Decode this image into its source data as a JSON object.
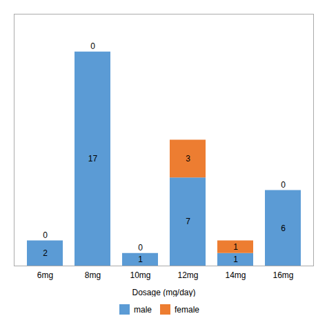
{
  "chart_data": {
    "type": "bar",
    "stacked": true,
    "xlabel": "Dosage (mg/day)",
    "categories": [
      "6mg",
      "8mg",
      "10mg",
      "12mg",
      "14mg",
      "16mg"
    ],
    "series": [
      {
        "name": "male",
        "color": "#5b9bd5",
        "values": [
          2,
          17,
          1,
          7,
          1,
          6
        ]
      },
      {
        "name": "female",
        "color": "#ed7d31",
        "values": [
          0,
          0,
          0,
          3,
          1,
          0
        ]
      }
    ],
    "ylim": [
      0,
      20
    ],
    "yticks": [],
    "grid": false,
    "legend": "bottom",
    "data_labels": true,
    "tick_labels": "x"
  }
}
